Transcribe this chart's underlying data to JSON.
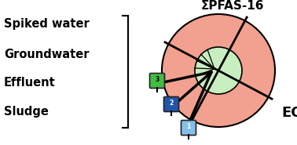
{
  "labels_left": [
    "Spiked water",
    "Groundwater",
    "Effluent",
    "Sludge"
  ],
  "label_eof": "EOF",
  "label_pfas": "ΣPFAS-16",
  "outer_circle_color": "#F2A090",
  "inner_circle_color": "#C8EEC0",
  "icon1_color": "#85C0E8",
  "icon2_color": "#2255AA",
  "icon3_color": "#44BB44",
  "bg_color": "#ffffff"
}
